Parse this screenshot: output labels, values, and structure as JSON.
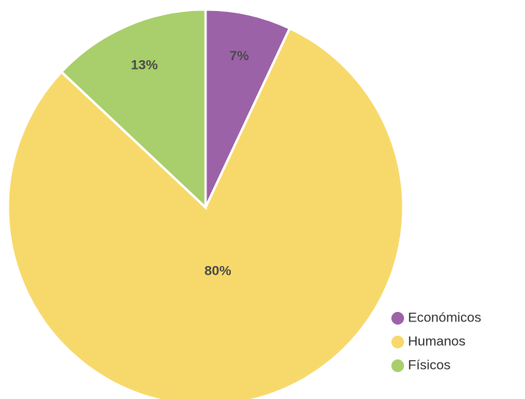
{
  "chart_data": {
    "type": "pie",
    "categories": [
      "Económicos",
      "Humanos",
      "Físicos"
    ],
    "values": [
      7,
      80,
      13
    ],
    "value_labels": [
      "7%",
      "80%",
      "13%"
    ],
    "colors": [
      "#9c62a8",
      "#f7d96b",
      "#a8cf6b"
    ],
    "legend": "bottom-right"
  }
}
